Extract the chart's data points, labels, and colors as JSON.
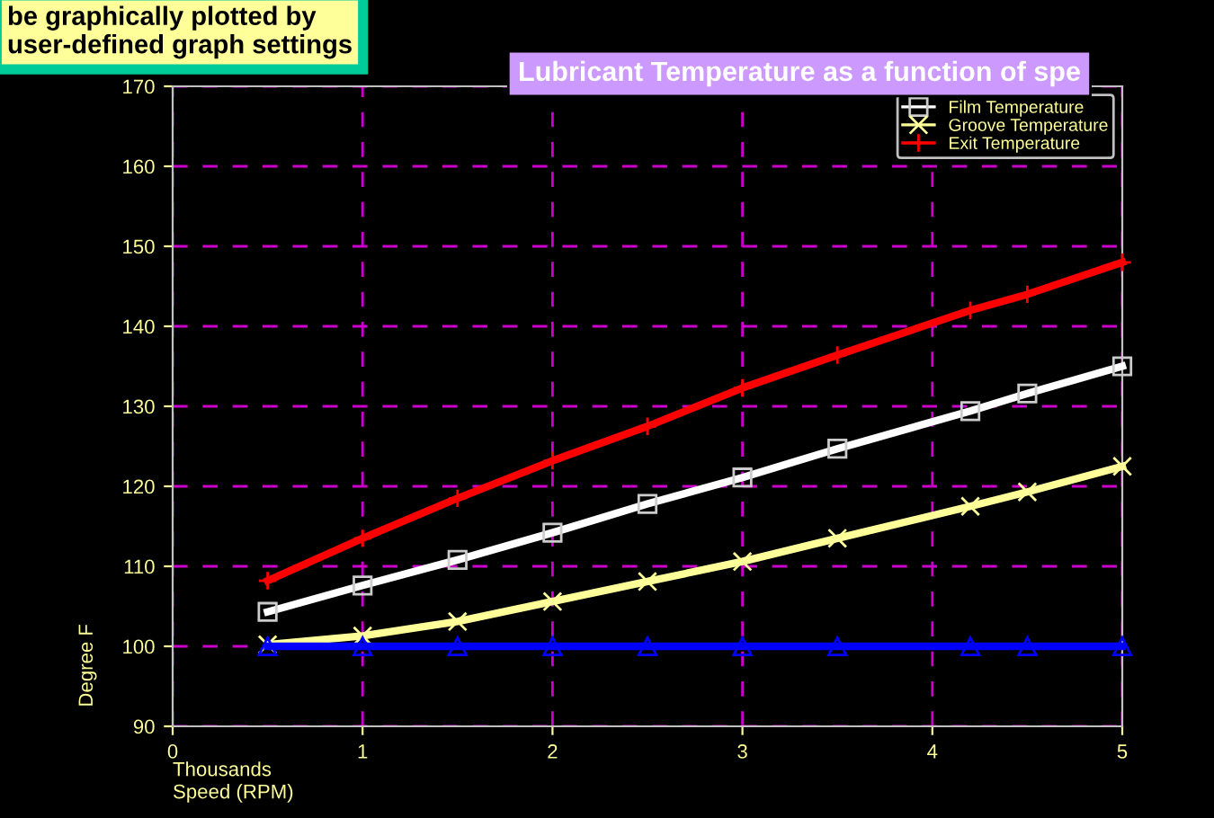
{
  "chart_data": {
    "type": "line",
    "title": "Lubricant Temperature as a function of spe",
    "xlabel": "Speed (RPM)",
    "ylabel": "Degree F",
    "annotations": [
      "be graphically plotted by\nuser-defined graph settings",
      "Thousands"
    ],
    "x": [
      0.5,
      1,
      1.5,
      2,
      2.5,
      3,
      3.5,
      4.2,
      4.5,
      5
    ],
    "series": [
      {
        "name": "Film Temperature",
        "color": "#ffffff",
        "marker": "square",
        "values": [
          104.3,
          107.6,
          110.8,
          114.2,
          117.8,
          121.1,
          124.7,
          129.4,
          131.6,
          135
        ]
      },
      {
        "name": "Groove Temperature",
        "color": "#ffff99",
        "marker": "cross",
        "values": [
          100.2,
          101.3,
          103.1,
          105.6,
          108.1,
          110.6,
          113.5,
          117.5,
          119.3,
          122.5
        ]
      },
      {
        "name": "Exit Temperature",
        "color": "#ff0000",
        "marker": "plus",
        "values": [
          108.2,
          113.5,
          118.5,
          123.2,
          127.5,
          132.3,
          136.4,
          142,
          144,
          148
        ]
      },
      {
        "color": "#0000ff",
        "marker": "triangle",
        "values": [
          100,
          100,
          100,
          100,
          100,
          100,
          100,
          100,
          100,
          100
        ]
      }
    ],
    "xlim": [
      0,
      5
    ],
    "xticks": [
      0,
      1,
      2,
      3,
      4,
      5
    ],
    "ylim": [
      90,
      170
    ],
    "yticks": [
      90,
      100,
      110,
      120,
      130,
      140,
      150,
      160,
      170
    ],
    "grid": true,
    "legend": "top right",
    "line_style": "solid"
  }
}
